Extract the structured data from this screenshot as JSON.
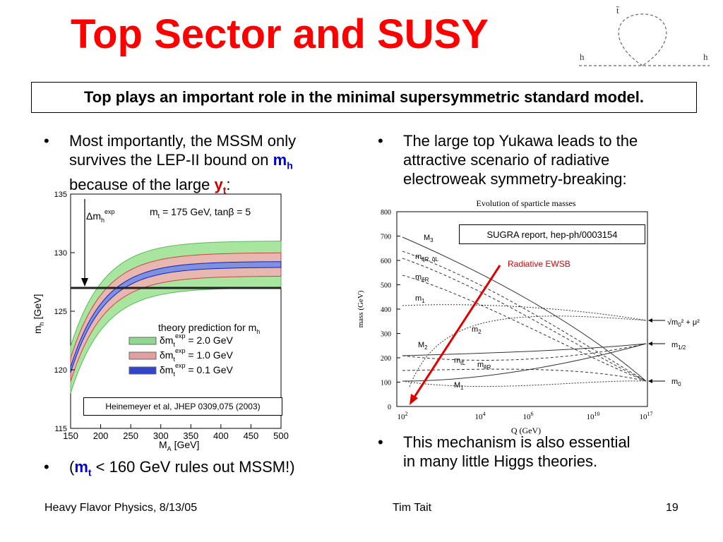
{
  "title": "Top Sector and SUSY",
  "subtitle": "Top plays an important role in the minimal supersymmetric standard model.",
  "diagram": {
    "top_label": "t̃",
    "left_label": "h",
    "right_label": "h"
  },
  "left_bullets": {
    "b1_part1": "Most importantly, the MSSM only",
    "b1_part2": "survives the LEP-II bound on ",
    "b1_mh": "m",
    "b1_mh_sub": "h",
    "b1_part3": "because of the large ",
    "b1_yt": "y",
    "b1_yt_sub": "t",
    "b1_colon": ":",
    "b2_open": "(",
    "b2_mt": "m",
    "b2_mt_sub": "t",
    "b2_rest": " < 160 GeV rules out MSSM!)"
  },
  "right_bullets": {
    "b1_line1": "The large top Yukawa leads to the",
    "b1_line2": "attractive scenario of radiative",
    "b1_line3": "electroweak symmetry-breaking:",
    "b2_line1": "This mechanism is also essential",
    "b2_line2": "in many little Higgs theories."
  },
  "bullet_char": "•",
  "left_chart": {
    "xlabel": "M",
    "xlabel_sub": "A",
    "xlabel_unit": " [GeV]",
    "ylabel": "m",
    "ylabel_sub": "h",
    "ylabel_unit": " [GeV]",
    "x_ticks": [
      "150",
      "200",
      "250",
      "300",
      "350",
      "400",
      "450",
      "500"
    ],
    "y_ticks": [
      "115",
      "120",
      "125",
      "130",
      "135"
    ],
    "delta_label": "Δm",
    "delta_sub": "h",
    "delta_sup": "exp",
    "params": "m",
    "params_sub": "t",
    "params_rest": " = 175 GeV, tanβ = 5",
    "legend_title": "theory prediction for m",
    "legend_title_sub": "h",
    "legend": [
      {
        "pre": "δm",
        "sub": "t",
        "sup": "exp",
        "val": " = 2.0 GeV",
        "color": "#8fd88f"
      },
      {
        "pre": "δm",
        "sub": "t",
        "sup": "exp",
        "val": " = 1.0 GeV",
        "color": "#e0a0a0"
      },
      {
        "pre": "δm",
        "sub": "t",
        "sup": "exp",
        "val": " = 0.1 GeV",
        "color": "#3344cc"
      }
    ],
    "citation": "Heinemeyer et al, JHEP 0309,075 (2003)",
    "bound_y": 127,
    "xlim": [
      150,
      500
    ],
    "ylim": [
      115,
      135
    ]
  },
  "right_chart": {
    "title": "Evolution of sparticle masses",
    "ylabel": "mass (GeV)",
    "xlabel": "Q  (GeV)",
    "y_ticks": [
      "0",
      "100",
      "200",
      "300",
      "400",
      "500",
      "600",
      "700",
      "800"
    ],
    "x_ticks": [
      "10",
      "10",
      "10",
      "10",
      "10"
    ],
    "x_tick_exps": [
      "2",
      "4",
      "6",
      "10",
      "17"
    ],
    "citation": "SUGRA report, hep-ph/0003154",
    "annotation": "Radiative EWSB",
    "curve_labels": {
      "M3": "M",
      "M3_sub": "3",
      "mqr": "m",
      "mqr_sub": "q̃R, q̃L",
      "meR": "m",
      "meR_sub": "ẽR",
      "m1": "m",
      "m1_sub": "1",
      "m2": "m",
      "m2_sub": "2",
      "M2": "M",
      "M2_sub": "2",
      "mlL": "m",
      "mlL_sub": "ℓ̃L",
      "meR2": "m",
      "meR2_sub": "ẽR",
      "M1": "M",
      "M1_sub": "1"
    },
    "right_labels": {
      "sqrt": "√m",
      "sqrt_sub": "0",
      "sqrt_rest": "² + μ²",
      "mhalf": "m",
      "mhalf_sub": "1/2",
      "m0": "m",
      "m0_sub": "0"
    }
  },
  "footer": {
    "left": "Heavy Flavor Physics, 8/13/05",
    "center": "Tim Tait",
    "page": "19"
  }
}
